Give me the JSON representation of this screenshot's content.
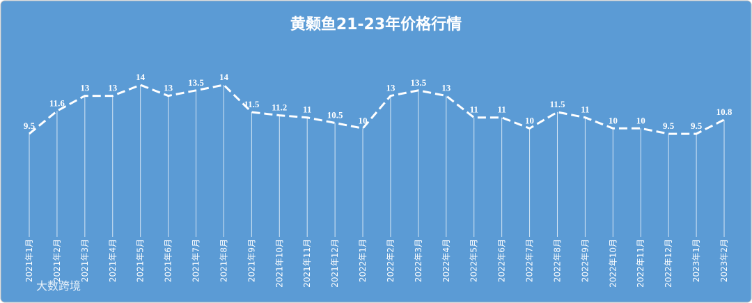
{
  "chart_data": {
    "type": "line",
    "title": "黄颡鱼21-23年价格行情",
    "categories": [
      "2021年1月",
      "2021年2月",
      "2021年3月",
      "2021年4月",
      "2021年5月",
      "2021年6月",
      "2021年7月",
      "2021年8月",
      "2021年9月",
      "2021年10月",
      "2021年11月",
      "2021年12月",
      "2022年1月",
      "2022年2月",
      "2022年3月",
      "2022年4月",
      "2022年5月",
      "2022年6月",
      "2022年7月",
      "2022年8月",
      "2022年9月",
      "2022年10月",
      "2022年11月",
      "2022年12月",
      "2023年1月",
      "2023年2月"
    ],
    "values": [
      9.5,
      11.6,
      13,
      13,
      14,
      13,
      13.5,
      14,
      11.5,
      11.2,
      11,
      10.5,
      10,
      13,
      13.5,
      13,
      11,
      11,
      10,
      11.5,
      11,
      10,
      10,
      9.5,
      9.5,
      10.8
    ],
    "color": "#ffffff",
    "watermark": "大数跨境"
  }
}
